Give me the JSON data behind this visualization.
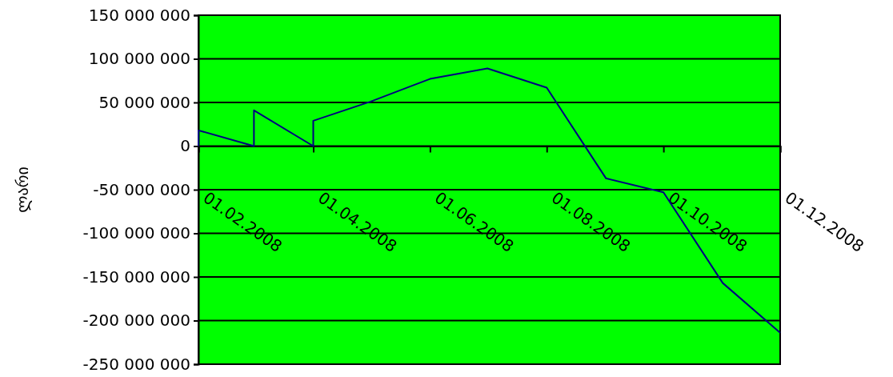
{
  "chart_data": {
    "type": "line",
    "ylabel": "ლარი",
    "x": [
      "2008-02-01",
      "2008-02-01",
      "2008-03-01",
      "2008-03-01",
      "2008-04-01",
      "2008-04-01",
      "2008-05-01",
      "2008-06-01",
      "2008-07-01",
      "2008-08-01",
      "2008-09-01",
      "2008-10-01",
      "2008-11-01",
      "2008-12-01"
    ],
    "series": [
      {
        "color": "#000080",
        "values": [
          0,
          18000000,
          0,
          41000000,
          0,
          29000000,
          51000000,
          77000000,
          89000000,
          67000000,
          -37000000,
          -53000000,
          -157000000,
          -214000000
        ]
      }
    ],
    "xlim": [
      "2008-02-01",
      "2008-12-01"
    ],
    "xticks": [
      {
        "value": "2008-02-01",
        "label": "01.02.2008"
      },
      {
        "value": "2008-04-01",
        "label": "01.04.2008"
      },
      {
        "value": "2008-06-01",
        "label": "01.06.2008"
      },
      {
        "value": "2008-08-01",
        "label": "01.08.2008"
      },
      {
        "value": "2008-10-01",
        "label": "01.10.2008"
      },
      {
        "value": "2008-12-01",
        "label": "01.12.2008"
      }
    ],
    "ylim": [
      -250000000,
      150000000
    ],
    "yticks": [
      {
        "value": -250000000,
        "label": "-250 000 000"
      },
      {
        "value": -200000000,
        "label": "-200 000 000"
      },
      {
        "value": -150000000,
        "label": "-150 000 000"
      },
      {
        "value": -100000000,
        "label": "-100 000 000"
      },
      {
        "value": -50000000,
        "label": "-50 000 000"
      },
      {
        "value": 0,
        "label": "0"
      },
      {
        "value": 50000000,
        "label": "50 000 000"
      },
      {
        "value": 100000000,
        "label": "100 000 000"
      },
      {
        "value": 150000000,
        "label": "150 000 000"
      }
    ],
    "grid": "y",
    "marker": "none",
    "line_style": "solid"
  }
}
